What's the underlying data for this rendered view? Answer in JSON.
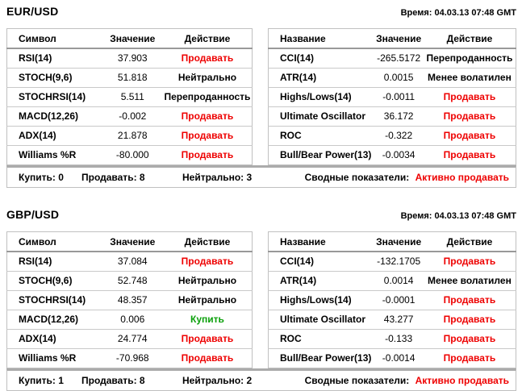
{
  "colors": {
    "sell": "#ee0000",
    "buy": "#0aa00a",
    "neutral": "#000000"
  },
  "sections": [
    {
      "pair": "EUR/USD",
      "time_label": "Время: 04.03.13 07:48 GMT",
      "left_table": {
        "headers": {
          "name": "Символ",
          "value": "Значение",
          "action": "Действие"
        },
        "rows": [
          {
            "name": "RSI(14)",
            "value": "37.903",
            "action": "Продавать",
            "action_type": "sell"
          },
          {
            "name": "STOCH(9,6)",
            "value": "51.818",
            "action": "Нейтрально",
            "action_type": "neutral"
          },
          {
            "name": "STOCHRSI(14)",
            "value": "5.511",
            "action": "Перепроданность",
            "action_type": "neutral"
          },
          {
            "name": "MACD(12,26)",
            "value": "-0.002",
            "action": "Продавать",
            "action_type": "sell"
          },
          {
            "name": "ADX(14)",
            "value": "21.878",
            "action": "Продавать",
            "action_type": "sell"
          },
          {
            "name": "Williams %R",
            "value": "-80.000",
            "action": "Продавать",
            "action_type": "sell"
          }
        ]
      },
      "right_table": {
        "headers": {
          "name": "Название",
          "value": "Значение",
          "action": "Действие"
        },
        "rows": [
          {
            "name": "CCI(14)",
            "value": "-265.5172",
            "action": "Перепроданность",
            "action_type": "neutral"
          },
          {
            "name": "ATR(14)",
            "value": "0.0015",
            "action": "Менее волатилен",
            "action_type": "neutral"
          },
          {
            "name": "Highs/Lows(14)",
            "value": "-0.0011",
            "action": "Продавать",
            "action_type": "sell"
          },
          {
            "name": "Ultimate Oscillator",
            "value": "36.172",
            "action": "Продавать",
            "action_type": "sell"
          },
          {
            "name": "ROC",
            "value": "-0.322",
            "action": "Продавать",
            "action_type": "sell"
          },
          {
            "name": "Bull/Bear Power(13)",
            "value": "-0.0034",
            "action": "Продавать",
            "action_type": "sell"
          }
        ]
      },
      "summary": {
        "buy_label": "Купить: 0",
        "sell_label": "Продавать: 8",
        "neutral_label": "Нейтрально: 3",
        "overall_label": "Сводные показатели:",
        "overall_value": "Активно продавать"
      }
    },
    {
      "pair": "GBP/USD",
      "time_label": "Время: 04.03.13 07:48 GMT",
      "left_table": {
        "headers": {
          "name": "Символ",
          "value": "Значение",
          "action": "Действие"
        },
        "rows": [
          {
            "name": "RSI(14)",
            "value": "37.084",
            "action": "Продавать",
            "action_type": "sell"
          },
          {
            "name": "STOCH(9,6)",
            "value": "52.748",
            "action": "Нейтрально",
            "action_type": "neutral"
          },
          {
            "name": "STOCHRSI(14)",
            "value": "48.357",
            "action": "Нейтрально",
            "action_type": "neutral"
          },
          {
            "name": "MACD(12,26)",
            "value": "0.006",
            "action": "Купить",
            "action_type": "buy"
          },
          {
            "name": "ADX(14)",
            "value": "24.774",
            "action": "Продавать",
            "action_type": "sell"
          },
          {
            "name": "Williams %R",
            "value": "-70.968",
            "action": "Продавать",
            "action_type": "sell"
          }
        ]
      },
      "right_table": {
        "headers": {
          "name": "Название",
          "value": "Значение",
          "action": "Действие"
        },
        "rows": [
          {
            "name": "CCI(14)",
            "value": "-132.1705",
            "action": "Продавать",
            "action_type": "sell"
          },
          {
            "name": "ATR(14)",
            "value": "0.0014",
            "action": "Менее волатилен",
            "action_type": "neutral"
          },
          {
            "name": "Highs/Lows(14)",
            "value": "-0.0001",
            "action": "Продавать",
            "action_type": "sell"
          },
          {
            "name": "Ultimate Oscillator",
            "value": "43.277",
            "action": "Продавать",
            "action_type": "sell"
          },
          {
            "name": "ROC",
            "value": "-0.133",
            "action": "Продавать",
            "action_type": "sell"
          },
          {
            "name": "Bull/Bear Power(13)",
            "value": "-0.0014",
            "action": "Продавать",
            "action_type": "sell"
          }
        ]
      },
      "summary": {
        "buy_label": "Купить: 1",
        "sell_label": "Продавать: 8",
        "neutral_label": "Нейтрально: 2",
        "overall_label": "Сводные показатели:",
        "overall_value": "Активно продавать"
      }
    }
  ]
}
